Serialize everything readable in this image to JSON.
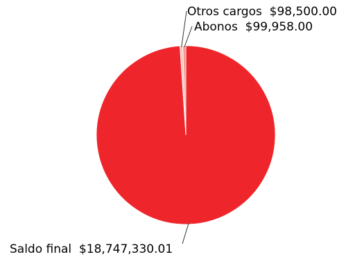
{
  "chart_data": {
    "type": "pie",
    "title": "",
    "slices": [
      {
        "label": "Saldo final",
        "value": 18747330.01,
        "value_text": "$18,747,330.01",
        "color": "#ee262c"
      },
      {
        "label": "Otros cargos",
        "value": 98500.0,
        "value_text": "$98,500.00",
        "color": "#f6c7c1"
      },
      {
        "label": "Abonos",
        "value": 99958.0,
        "value_text": "$99,958.00",
        "color": "#f29a8e"
      }
    ],
    "legend": "none",
    "start_angle": "12 o'clock, clockwise"
  }
}
